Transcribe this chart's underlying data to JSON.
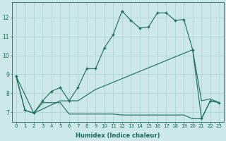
{
  "xlabel": "Humidex (Indice chaleur)",
  "bg_color": "#cce8e8",
  "grid_color": "#aacfcf",
  "line_color": "#1a6b5a",
  "xlim": [
    -0.5,
    23.5
  ],
  "ylim": [
    6.5,
    12.8
  ],
  "xticks": [
    0,
    1,
    2,
    3,
    4,
    5,
    6,
    7,
    8,
    9,
    10,
    11,
    12,
    13,
    14,
    15,
    16,
    17,
    18,
    19,
    20,
    21,
    22,
    23
  ],
  "yticks": [
    7,
    8,
    9,
    10,
    11,
    12
  ],
  "line1_x": [
    0,
    1,
    2,
    3,
    4,
    5,
    6,
    7,
    8,
    9,
    10,
    11,
    12,
    13,
    14,
    15,
    16,
    17,
    18,
    19,
    20,
    21,
    22,
    23
  ],
  "line1_y": [
    8.9,
    7.1,
    6.95,
    7.6,
    8.1,
    8.3,
    7.6,
    8.3,
    9.3,
    9.3,
    10.4,
    11.1,
    12.35,
    11.85,
    11.45,
    11.5,
    12.25,
    12.25,
    11.85,
    11.9,
    10.3,
    6.65,
    7.6,
    7.5
  ],
  "line2_x": [
    0,
    2,
    5,
    6,
    7,
    9,
    20,
    21,
    22,
    23
  ],
  "line2_y": [
    8.9,
    6.95,
    7.6,
    7.6,
    7.6,
    8.2,
    10.3,
    7.6,
    7.7,
    7.5
  ],
  "line3_x": [
    0,
    1,
    2,
    3,
    4,
    5,
    6,
    7,
    8,
    9,
    10,
    11,
    12,
    13,
    14,
    15,
    16,
    17,
    18,
    19,
    20,
    21,
    22,
    23
  ],
  "line3_y": [
    8.9,
    7.1,
    6.95,
    7.5,
    7.5,
    7.5,
    6.9,
    6.9,
    6.9,
    6.9,
    6.9,
    6.9,
    6.85,
    6.85,
    6.85,
    6.85,
    6.85,
    6.85,
    6.85,
    6.85,
    6.65,
    6.65,
    7.6,
    7.5
  ]
}
